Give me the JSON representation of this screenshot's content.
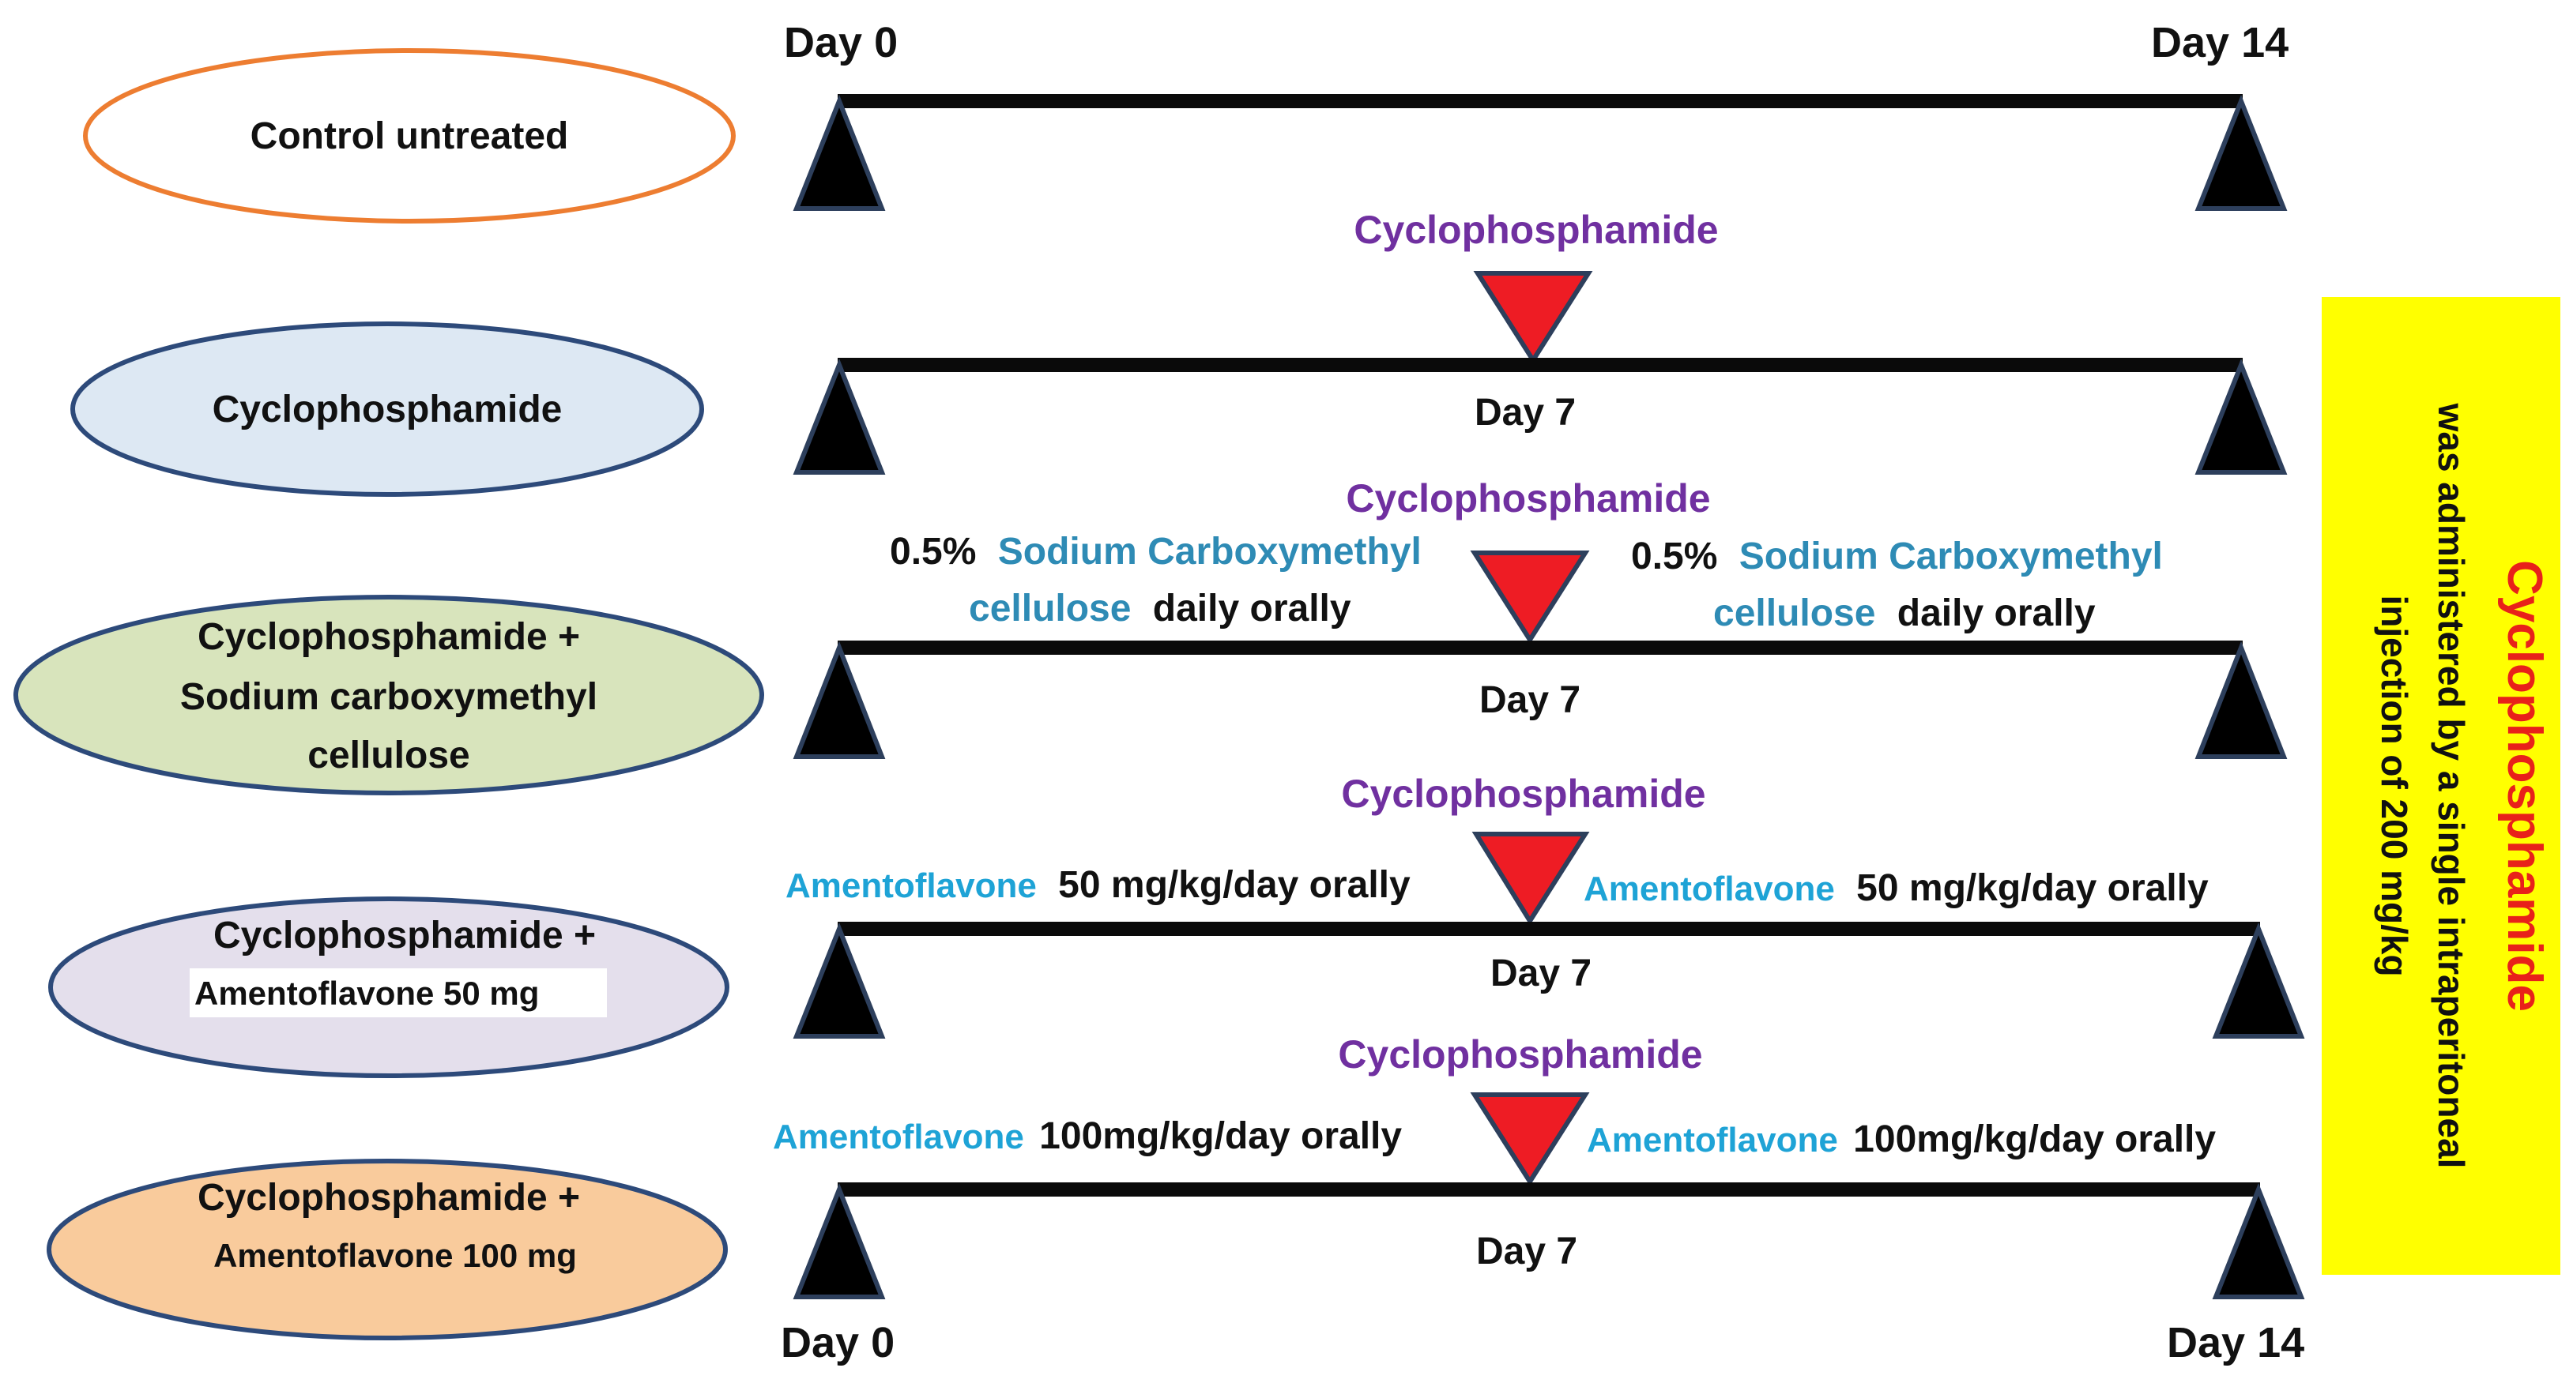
{
  "colors": {
    "line": "#0a0a0a",
    "marker_fill": "#000000",
    "marker_stroke": "#2d3f5c",
    "cp_marker": "#ee1c24",
    "purple": "#7030a0",
    "blue": "#2e8bb5",
    "cyan": "#1ea3d6",
    "note_bg": "#ffff00",
    "note_red": "#e8211a"
  },
  "headers": {
    "day0_top": "Day 0",
    "day14_top": "Day 14",
    "day0_bottom": "Day 0",
    "day14_bottom": "Day 14"
  },
  "groups": [
    {
      "id": "control",
      "label_lines": [
        "Control  untreated"
      ],
      "fill": "#ffffff",
      "stroke": "#ed7d31"
    },
    {
      "id": "cp",
      "label_lines": [
        "Cyclophosphamide"
      ],
      "fill": "#dde8f3",
      "stroke": "#2d4a7a",
      "injection_label": "Cyclophosphamide",
      "day7": "Day 7"
    },
    {
      "id": "cmc",
      "label_lines": [
        "Cyclophosphamide  +",
        "Sodium  carboxymethyl",
        "cellulose"
      ],
      "fill": "#d8e4bc",
      "stroke": "#2d4a7a",
      "injection_label": "Cyclophosphamide",
      "day7": "Day 7",
      "treatment": {
        "dose": "0.5%",
        "drug_line1": "Sodium Carboxymethyl",
        "drug_line2": "cellulose",
        "suffix": "daily orally"
      }
    },
    {
      "id": "amf50",
      "label_lines": [
        "Cyclophosphamide  +"
      ],
      "sub_label": "Amentoflavone 50 mg",
      "fill": "#e4dfec",
      "stroke": "#2d4a7a",
      "injection_label": "Cyclophosphamide",
      "day7": "Day 7",
      "treatment": {
        "drug": "Amentoflavone",
        "dose": "50 mg/kg/day orally"
      }
    },
    {
      "id": "amf100",
      "label_lines": [
        "Cyclophosphamide  +"
      ],
      "sub_label": "Amentoflavone 100 mg",
      "fill": "#f9cb9c",
      "stroke": "#2d4a7a",
      "injection_label": "Cyclophosphamide",
      "day7": "Day 7",
      "treatment": {
        "drug": "Amentoflavone",
        "dose": "100mg/kg/day orally"
      }
    }
  ],
  "note": {
    "title": "Cyclophosphamide",
    "line1": "was administered by a single intraperitoneal",
    "line2": "injection of 200 mg/kg"
  }
}
